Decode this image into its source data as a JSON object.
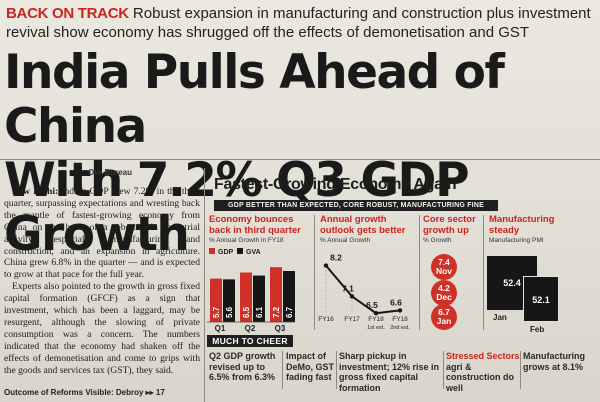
{
  "kicker": {
    "tag": "BACK ON TRACK",
    "text": " Robust expansion in manufacturing and construction plus investment revival show economy has shrugged off the effects of demonetisation and GST"
  },
  "headline": {
    "line1": "India Pulls Ahead of China",
    "line2": "With 7.2% Q3 GDP Growth"
  },
  "byline": "Our Bureau",
  "body": {
    "dateline": "New Delhi:",
    "paragraphs": [
      " India's GDP grew 7.2% in the third quarter, surpassing expectations and wresting back the mantle of fastest-growing economy from China on the back of a rebound in industrial activity, especially manufacturing and construction, and an expansion in agriculture. China grew 6.8% in the quarter — and is expected to grow at that pace for the full year.",
      "Experts also pointed to the growth in gross fixed capital formation (GFCF) as a sign that investment, which has been a laggard, may be resurgent, although the slowing of private consumption was a concern. The numbers indicated that the economy had shaken off the effects of demonetisation and come to grips with the goods and services tax (GST), they said."
    ]
  },
  "footer_link": "Outcome of Reforms Visible: Debroy ▸▸ 17",
  "infographic": {
    "title": "Fastest-Growing Economy Again",
    "subtitle": "GDP BETTER THAN EXPECTED, CORE ROBUST, MANUFACTURING FINE",
    "colors": {
      "red": "#cf3128",
      "dark": "#161616",
      "pink": "#d3726c"
    }
  },
  "panel1": {
    "title_line1": "Economy bounces",
    "title_line2": "back in third quarter",
    "note": "% Annual Growth in FY18",
    "legend": [
      "GDP",
      "GVA"
    ]
  },
  "panel2": {
    "title_line1": "Annual growth",
    "title_line2": "outlook gets better",
    "note": "% Annual Growth"
  },
  "panel3": {
    "title_line1": "Core sector",
    "title_line2": "growth up",
    "note": "% Growth",
    "bubbles": [
      {
        "value": "7.4",
        "month": "Nov"
      },
      {
        "value": "4.2",
        "month": "Dec"
      },
      {
        "value": "6.7",
        "month": "Jan"
      }
    ]
  },
  "panel4": {
    "title_line1": "Manufacturing",
    "title_line2": "steady",
    "note": "Manufacturing PMI",
    "months": [
      "Jan",
      "Feb"
    ],
    "values": [
      "52.4",
      "52.1"
    ]
  },
  "chart_data": [
    {
      "type": "bar",
      "title": "Economy bounces back in third quarter",
      "ylabel": "% Annual Growth in FY18",
      "categories": [
        "Q1",
        "Q2",
        "Q3"
      ],
      "series": [
        {
          "name": "GDP",
          "values": [
            5.7,
            6.5,
            7.2
          ]
        },
        {
          "name": "GVA",
          "values": [
            5.6,
            6.1,
            6.7
          ]
        }
      ],
      "ylim": [
        0,
        8
      ]
    },
    {
      "type": "line",
      "title": "Annual growth outlook gets better",
      "ylabel": "% Annual Growth",
      "categories": [
        "FY16",
        "FY17",
        "FY18 1st est.",
        "FY18 2nd est."
      ],
      "tick_labels": [
        "FY16",
        "FY17",
        "FY18",
        "FY18"
      ],
      "tick_sublabels": [
        "",
        "",
        "1st est.",
        "2nd est."
      ],
      "values": [
        8.2,
        7.1,
        6.5,
        6.6
      ]
    }
  ],
  "cheer": {
    "label": "MUCH TO CHEER",
    "items": [
      {
        "text": "Q2 GDP growth revised up to 6.5% from 6.3%"
      },
      {
        "text": "Impact of DeMo, GST fading fast"
      },
      {
        "text": "Sharp pickup in investment; 12% rise in gross fixed capital formation"
      },
      {
        "red": "Stressed Sectors",
        "text": " agri & construction do well"
      },
      {
        "text": "Manufacturing grows at 8.1%"
      }
    ]
  }
}
